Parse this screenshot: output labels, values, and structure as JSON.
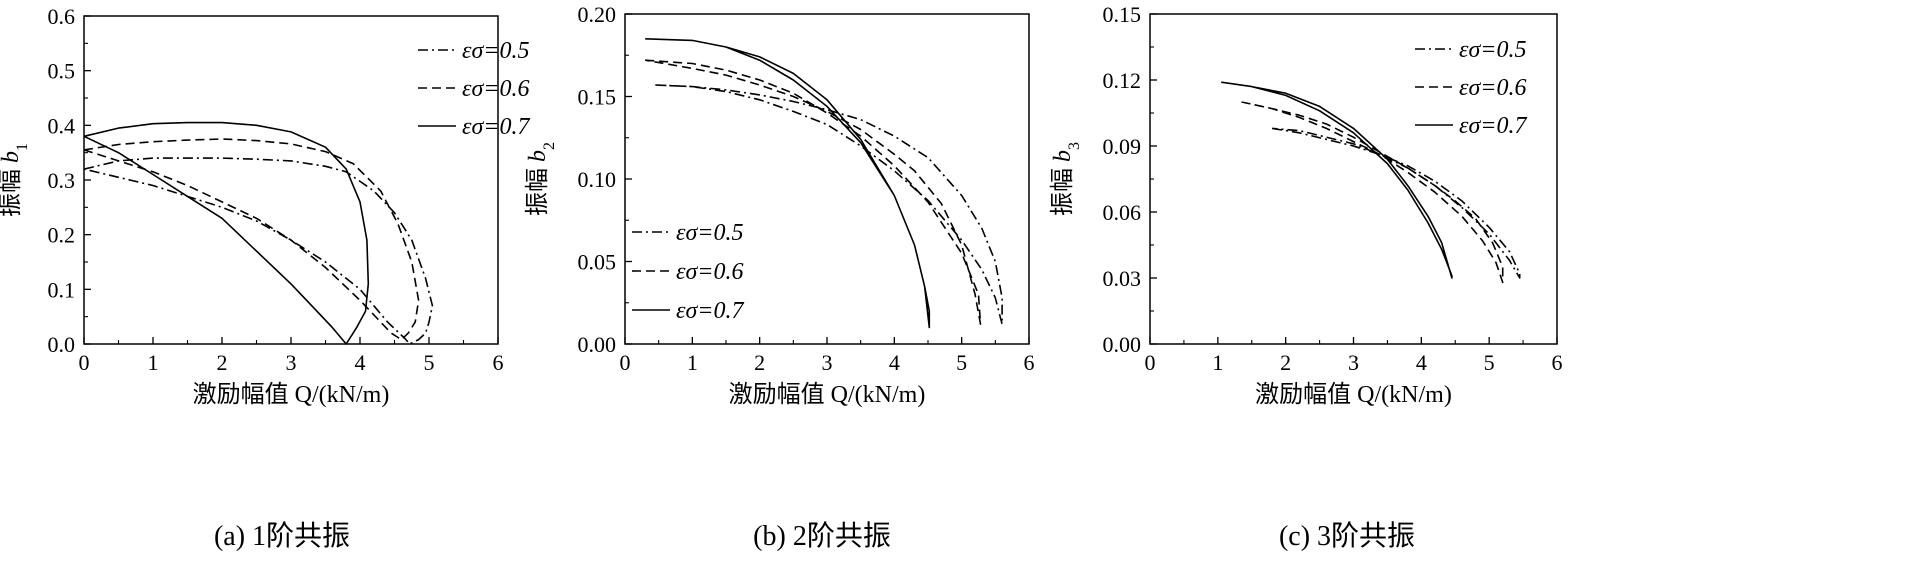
{
  "chart_data": [
    {
      "type": "line",
      "caption": "(a) 1阶共振",
      "xlabel": "激励幅值 Q/(kN/m)",
      "ylabel_prefix": "振幅 ",
      "ylabel_var": "b",
      "ylabel_sub": "1",
      "xlim": [
        0,
        6
      ],
      "ylim": [
        0,
        0.6
      ],
      "xticks": [
        "0",
        "1",
        "2",
        "3",
        "4",
        "5",
        "6"
      ],
      "yticks": [
        "0.0",
        "0.1",
        "0.2",
        "0.3",
        "0.4",
        "0.5",
        "0.6"
      ],
      "legend_position": "top-right",
      "series": [
        {
          "name": "εσ=0.5",
          "style": "dashdot",
          "x": [
            0.0,
            0.5,
            1.0,
            1.5,
            2.0,
            2.5,
            3.0,
            3.5,
            3.8,
            4.2,
            4.5,
            4.75,
            4.95,
            5.05,
            5.0,
            4.95,
            4.85,
            4.72,
            4.65,
            4.4,
            4.0,
            3.5,
            3.0,
            2.5,
            2.0,
            1.5,
            1.0,
            0.5,
            0.0
          ],
          "y": [
            0.32,
            0.335,
            0.34,
            0.34,
            0.34,
            0.338,
            0.335,
            0.325,
            0.315,
            0.28,
            0.24,
            0.19,
            0.12,
            0.07,
            0.04,
            0.02,
            0.008,
            0.0,
            0.01,
            0.04,
            0.1,
            0.15,
            0.19,
            0.225,
            0.25,
            0.27,
            0.29,
            0.305,
            0.32
          ]
        },
        {
          "name": "εσ=0.6",
          "style": "dashed",
          "x": [
            0.0,
            0.5,
            1.0,
            1.5,
            2.0,
            2.5,
            3.0,
            3.5,
            3.9,
            4.3,
            4.55,
            4.75,
            4.85,
            4.8,
            4.7,
            4.6,
            4.45,
            4.3,
            4.0,
            3.5,
            3.0,
            2.5,
            2.0,
            1.5,
            1.0,
            0.5,
            0.0
          ],
          "y": [
            0.355,
            0.365,
            0.37,
            0.373,
            0.375,
            0.372,
            0.366,
            0.352,
            0.33,
            0.28,
            0.22,
            0.15,
            0.08,
            0.04,
            0.02,
            0.008,
            0.02,
            0.04,
            0.08,
            0.14,
            0.19,
            0.23,
            0.26,
            0.29,
            0.315,
            0.335,
            0.355
          ]
        },
        {
          "name": "εσ=0.7",
          "style": "solid",
          "x": [
            0.0,
            0.5,
            1.0,
            1.5,
            2.0,
            2.5,
            3.0,
            3.5,
            3.8,
            4.0,
            4.1,
            4.12,
            4.08,
            3.95,
            3.8,
            3.6,
            3.3,
            3.0,
            2.5,
            2.0,
            1.5,
            1.0,
            0.5,
            0.0
          ],
          "y": [
            0.38,
            0.395,
            0.403,
            0.405,
            0.405,
            0.4,
            0.388,
            0.36,
            0.32,
            0.26,
            0.19,
            0.11,
            0.06,
            0.03,
            0.0,
            0.03,
            0.07,
            0.11,
            0.17,
            0.23,
            0.27,
            0.31,
            0.35,
            0.38
          ]
        }
      ]
    },
    {
      "type": "line",
      "caption": "(b) 2阶共振",
      "xlabel": "激励幅值 Q/(kN/m)",
      "ylabel_prefix": "振幅 ",
      "ylabel_var": "b",
      "ylabel_sub": "2",
      "xlim": [
        0,
        6
      ],
      "ylim": [
        0,
        0.2
      ],
      "xticks": [
        "0",
        "1",
        "2",
        "3",
        "4",
        "5",
        "6"
      ],
      "yticks": [
        "0.00",
        "0.05",
        "0.10",
        "0.15",
        "0.20"
      ],
      "legend_position": "bottom-left",
      "series": [
        {
          "name": "εσ=0.5",
          "style": "dashdot",
          "x": [
            0.45,
            1.0,
            1.5,
            2.0,
            2.5,
            3.0,
            3.5,
            4.0,
            4.5,
            5.0,
            5.3,
            5.5,
            5.6,
            5.6,
            5.5,
            5.3,
            5.0,
            4.5,
            4.0,
            3.5,
            3.0,
            2.5,
            2.0,
            1.5,
            1.0,
            0.45
          ],
          "y": [
            0.157,
            0.156,
            0.153,
            0.148,
            0.141,
            0.133,
            0.12,
            0.105,
            0.087,
            0.063,
            0.045,
            0.028,
            0.012,
            0.028,
            0.05,
            0.07,
            0.09,
            0.113,
            0.126,
            0.136,
            0.142,
            0.147,
            0.151,
            0.154,
            0.156,
            0.157
          ]
        },
        {
          "name": "εσ=0.6",
          "style": "dashed",
          "x": [
            0.3,
            1.0,
            1.5,
            2.0,
            2.5,
            3.0,
            3.5,
            4.0,
            4.5,
            5.0,
            5.25,
            5.28,
            5.2,
            5.0,
            4.7,
            4.3,
            4.0,
            3.5,
            3.0,
            2.5,
            2.0,
            1.5,
            1.0,
            0.3
          ],
          "y": [
            0.172,
            0.17,
            0.166,
            0.16,
            0.152,
            0.14,
            0.126,
            0.108,
            0.086,
            0.055,
            0.03,
            0.012,
            0.03,
            0.06,
            0.085,
            0.105,
            0.115,
            0.13,
            0.141,
            0.15,
            0.157,
            0.163,
            0.167,
            0.172
          ]
        },
        {
          "name": "εσ=0.7",
          "style": "solid",
          "x": [
            0.3,
            1.0,
            1.5,
            2.0,
            2.5,
            3.0,
            3.5,
            4.0,
            4.3,
            4.45,
            4.52,
            4.52,
            4.45,
            4.3,
            4.0,
            3.5,
            3.0,
            2.5,
            2.0,
            1.5,
            1.0,
            0.3
          ],
          "y": [
            0.185,
            0.184,
            0.18,
            0.172,
            0.16,
            0.144,
            0.122,
            0.09,
            0.06,
            0.035,
            0.02,
            0.01,
            0.035,
            0.06,
            0.09,
            0.124,
            0.148,
            0.164,
            0.174,
            0.18,
            0.184,
            0.185
          ]
        }
      ]
    },
    {
      "type": "line",
      "caption": "(c) 3阶共振",
      "xlabel": "激励幅值 Q/(kN/m)",
      "ylabel_prefix": "振幅 ",
      "ylabel_var": "b",
      "ylabel_sub": "3",
      "xlim": [
        0,
        6
      ],
      "ylim": [
        0,
        0.15
      ],
      "xticks": [
        "0",
        "1",
        "2",
        "3",
        "4",
        "5",
        "6"
      ],
      "yticks": [
        "0.00",
        "0.03",
        "0.06",
        "0.09",
        "0.12",
        "0.15"
      ],
      "legend_position": "top-right",
      "series": [
        {
          "name": "εσ=0.5",
          "style": "dashdot",
          "x": [
            1.8,
            2.2,
            2.6,
            3.0,
            3.4,
            3.8,
            4.2,
            4.6,
            5.0,
            5.3,
            5.45,
            5.45,
            5.3,
            5.0,
            4.6,
            4.2,
            3.8,
            3.4,
            3.0,
            2.6,
            2.2,
            1.8
          ],
          "y": [
            0.098,
            0.096,
            0.093,
            0.09,
            0.086,
            0.081,
            0.074,
            0.065,
            0.053,
            0.042,
            0.032,
            0.03,
            0.038,
            0.05,
            0.062,
            0.072,
            0.08,
            0.086,
            0.091,
            0.094,
            0.097,
            0.098
          ]
        },
        {
          "name": "εσ=0.6",
          "style": "dashed",
          "x": [
            1.35,
            1.8,
            2.2,
            2.6,
            3.0,
            3.4,
            3.8,
            4.2,
            4.6,
            4.9,
            5.1,
            5.2,
            5.2,
            5.05,
            4.8,
            4.5,
            4.2,
            3.8,
            3.4,
            3.0,
            2.6,
            2.2,
            1.8,
            1.35
          ],
          "y": [
            0.11,
            0.107,
            0.103,
            0.098,
            0.092,
            0.086,
            0.078,
            0.069,
            0.058,
            0.047,
            0.037,
            0.028,
            0.035,
            0.046,
            0.057,
            0.065,
            0.072,
            0.08,
            0.087,
            0.094,
            0.1,
            0.104,
            0.107,
            0.11
          ]
        },
        {
          "name": "εσ=0.7",
          "style": "solid",
          "x": [
            1.05,
            1.5,
            2.0,
            2.5,
            3.0,
            3.5,
            3.8,
            4.1,
            4.3,
            4.45,
            4.45,
            4.3,
            4.1,
            3.8,
            3.5,
            3.0,
            2.5,
            2.0,
            1.5,
            1.05
          ],
          "y": [
            0.119,
            0.117,
            0.113,
            0.106,
            0.096,
            0.082,
            0.07,
            0.055,
            0.043,
            0.031,
            0.03,
            0.046,
            0.058,
            0.072,
            0.084,
            0.098,
            0.108,
            0.114,
            0.117,
            0.119
          ]
        }
      ]
    }
  ]
}
